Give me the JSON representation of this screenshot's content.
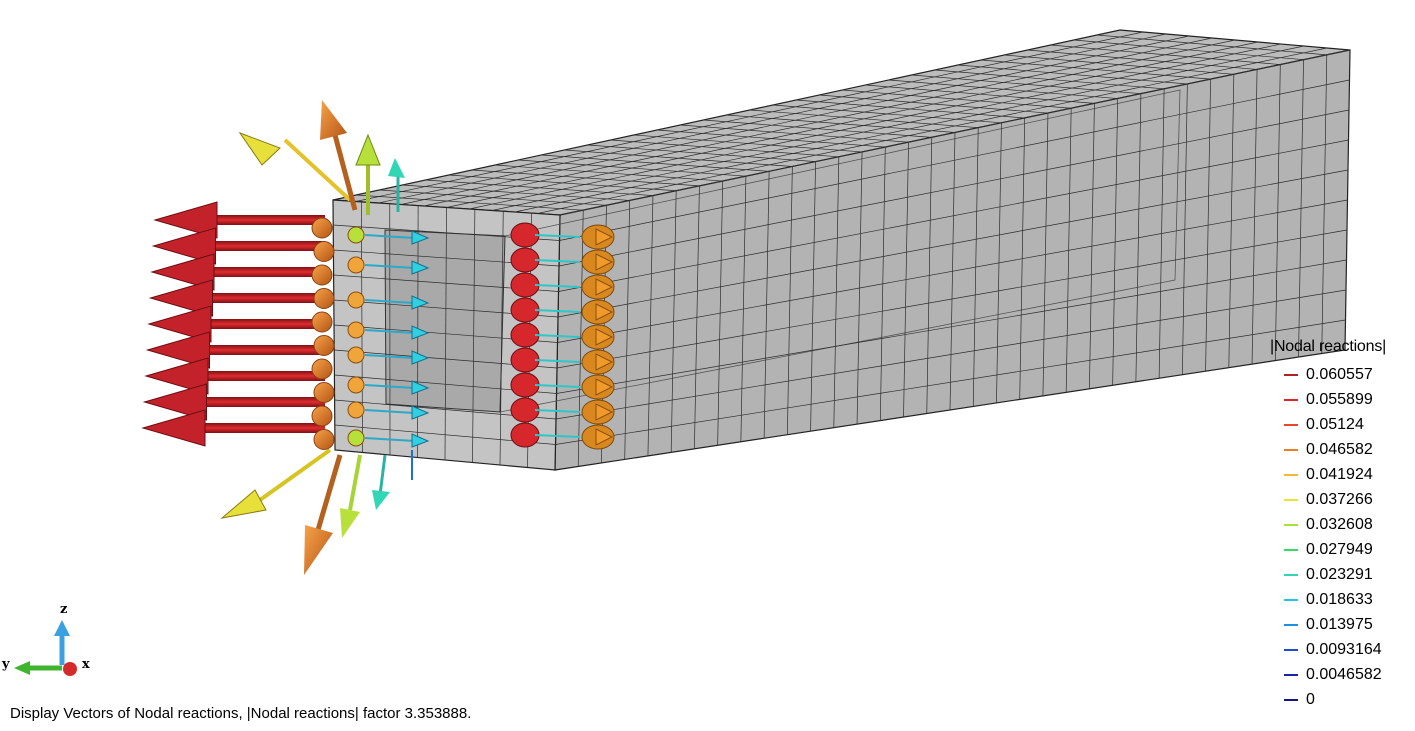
{
  "legend": {
    "title": "|Nodal reactions|",
    "items": [
      {
        "label": "0.060557",
        "color": "#b22222"
      },
      {
        "label": "0.055899",
        "color": "#d8282a"
      },
      {
        "label": "0.05124",
        "color": "#e8452d"
      },
      {
        "label": "0.046582",
        "color": "#f07c26"
      },
      {
        "label": "0.041924",
        "color": "#f5b536"
      },
      {
        "label": "0.037266",
        "color": "#e8e43a"
      },
      {
        "label": "0.032608",
        "color": "#a7e23a"
      },
      {
        "label": "0.027949",
        "color": "#3fd865"
      },
      {
        "label": "0.023291",
        "color": "#31d6b5"
      },
      {
        "label": "0.018633",
        "color": "#22c6e0"
      },
      {
        "label": "0.013975",
        "color": "#1f8fe3"
      },
      {
        "label": "0.0093164",
        "color": "#1b4fcb"
      },
      {
        "label": "0.0046582",
        "color": "#1a23a8"
      },
      {
        "label": "0",
        "color": "#151580"
      }
    ]
  },
  "axes": {
    "x_label": "x",
    "y_label": "y",
    "z_label": "z"
  },
  "status_text": "Display Vectors of Nodal reactions, |Nodal reactions| factor 3.353888."
}
